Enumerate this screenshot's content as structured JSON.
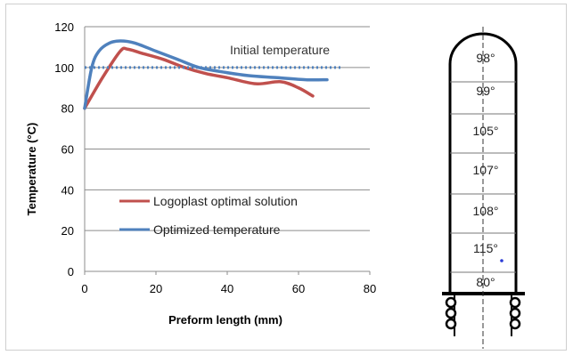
{
  "chart_data": {
    "type": "line",
    "xlabel": "Preform length (mm)",
    "ylabel": "Temperature (°C)",
    "xlim": [
      0,
      80
    ],
    "ylim": [
      0,
      120
    ],
    "x_ticks": [
      "0",
      "20",
      "40",
      "60",
      "80"
    ],
    "y_ticks": [
      "0",
      "20",
      "40",
      "60",
      "80",
      "100",
      "120"
    ],
    "grid": "horizontal",
    "legend": "left-bottom",
    "series": [
      {
        "name": "Logoplast optimal solution",
        "color": "#c0504d",
        "x": [
          0,
          5,
          10,
          12,
          16,
          22,
          28,
          34,
          40,
          48,
          55,
          60,
          64
        ],
        "y": [
          80,
          95,
          108,
          109,
          107,
          104,
          100,
          97,
          95,
          92,
          93,
          90,
          86
        ]
      },
      {
        "name": "Optimized temperature",
        "color": "#4f81bd",
        "x": [
          0,
          2,
          4,
          7,
          10,
          14,
          20,
          26,
          32,
          38,
          46,
          54,
          62,
          68
        ],
        "y": [
          80,
          100,
          108,
          112,
          113,
          112,
          108,
          104,
          100,
          98,
          96,
          95,
          94,
          94
        ]
      },
      {
        "name": "Initial temperature",
        "color": "#4f81bd",
        "style": "dotted",
        "x": [
          0,
          72
        ],
        "y": [
          100,
          100
        ]
      }
    ],
    "annotation": "Initial temperature"
  },
  "preform": {
    "zones": [
      "98°",
      "99°",
      "105°",
      "107°",
      "108°",
      "115°",
      "80°"
    ]
  }
}
